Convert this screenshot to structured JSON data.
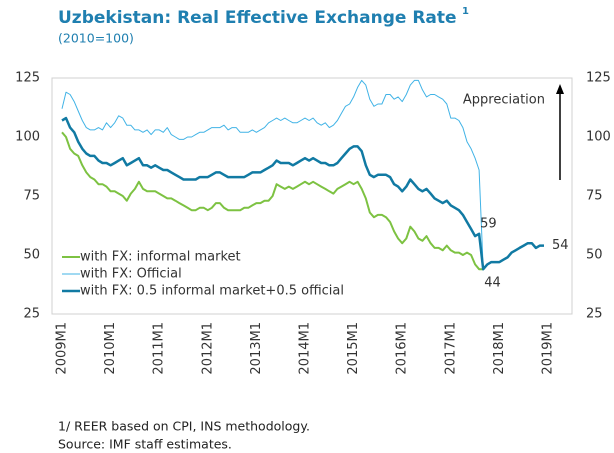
{
  "chart_data": {
    "type": "line",
    "title": "Uzbekistan: Real Effective Exchange Rate",
    "title_note_marker": "1",
    "subtitle": "(2010=100)",
    "categories": [
      "2009M1",
      null,
      null,
      null,
      null,
      null,
      null,
      null,
      null,
      null,
      null,
      null,
      "2010M1",
      null,
      null,
      null,
      null,
      null,
      null,
      null,
      null,
      null,
      null,
      null,
      "2011M1",
      null,
      null,
      null,
      null,
      null,
      null,
      null,
      null,
      null,
      null,
      null,
      "2012M1",
      null,
      null,
      null,
      null,
      null,
      null,
      null,
      null,
      null,
      null,
      null,
      "2013M1",
      null,
      null,
      null,
      null,
      null,
      null,
      null,
      null,
      null,
      null,
      null,
      "2014M1",
      null,
      null,
      null,
      null,
      null,
      null,
      null,
      null,
      null,
      null,
      null,
      "2015M1",
      null,
      null,
      null,
      null,
      null,
      null,
      null,
      null,
      null,
      null,
      null,
      "2016M1",
      null,
      null,
      null,
      null,
      null,
      null,
      null,
      null,
      null,
      null,
      null,
      "2017M1",
      null,
      null,
      null,
      null,
      null,
      null,
      null,
      null,
      null,
      null,
      null,
      "2018M1",
      null,
      null,
      null,
      null,
      null,
      null,
      null,
      null,
      null,
      null,
      null,
      "2019M1"
    ],
    "series": [
      {
        "name": "with FX: informal market",
        "color": "#7dc242",
        "width": 2,
        "values": [
          102,
          100,
          95,
          93,
          92,
          88,
          85,
          83,
          82,
          80,
          80,
          79,
          77,
          77,
          76,
          75,
          73,
          76,
          78,
          81,
          78,
          77,
          77,
          77,
          76,
          75,
          74,
          74,
          73,
          72,
          71,
          70,
          69,
          69,
          70,
          70,
          69,
          70,
          72,
          72,
          70,
          69,
          69,
          69,
          69,
          70,
          70,
          71,
          72,
          72,
          73,
          73,
          75,
          80,
          79,
          78,
          79,
          78,
          79,
          80,
          81,
          80,
          81,
          80,
          79,
          78,
          77,
          76,
          78,
          79,
          80,
          81,
          80,
          81,
          78,
          74,
          68,
          66,
          67,
          67,
          66,
          64,
          60,
          57,
          55,
          57,
          62,
          60,
          57,
          56,
          58,
          55,
          53,
          53,
          52,
          54,
          52,
          51,
          51,
          50,
          51,
          50,
          46,
          44,
          44,
          null,
          null,
          null,
          null,
          null,
          null,
          null,
          null,
          null,
          null,
          null,
          null,
          null,
          null,
          null,
          null
        ],
        "value_labels": [
          null,
          null,
          null,
          null,
          null,
          null,
          null,
          null,
          null,
          null,
          null,
          null,
          null,
          null,
          null,
          null,
          null,
          null,
          null,
          null,
          null,
          null,
          null,
          null,
          null,
          null,
          null,
          null,
          null,
          null,
          null,
          null,
          null,
          null,
          null,
          null,
          null,
          null,
          null,
          null,
          null,
          null,
          null,
          null,
          null,
          null,
          null,
          null,
          null,
          null,
          null,
          null,
          null,
          null,
          null,
          null,
          null,
          null,
          null,
          null,
          null,
          null,
          null,
          null,
          null,
          null,
          null,
          null,
          null,
          null,
          null,
          null,
          null,
          null,
          null,
          null,
          null,
          null,
          null,
          null,
          null,
          null,
          null,
          null,
          null,
          null,
          null,
          null,
          null,
          null,
          null,
          null,
          null,
          null,
          null,
          null,
          null,
          null,
          null,
          null,
          null,
          null,
          null,
          null,
          "44",
          null,
          null,
          null,
          null,
          null,
          null,
          null,
          null,
          null,
          null,
          null,
          null,
          null,
          null,
          null,
          null
        ]
      },
      {
        "name": "with FX: Official",
        "color": "#41b3e6",
        "width": 1,
        "values": [
          112,
          119,
          118,
          115,
          111,
          107,
          104,
          103,
          103,
          104,
          103,
          106,
          104,
          106,
          109,
          108,
          105,
          105,
          103,
          103,
          102,
          103,
          101,
          103,
          103,
          102,
          104,
          101,
          100,
          99,
          99,
          100,
          100,
          101,
          102,
          102,
          103,
          104,
          104,
          104,
          105,
          103,
          104,
          104,
          102,
          102,
          102,
          103,
          102,
          103,
          104,
          106,
          107,
          108,
          107,
          108,
          107,
          106,
          106,
          107,
          108,
          107,
          108,
          106,
          105,
          106,
          104,
          105,
          107,
          110,
          113,
          114,
          117,
          121,
          124,
          122,
          116,
          113,
          114,
          114,
          118,
          118,
          116,
          117,
          115,
          118,
          122,
          124,
          124,
          120,
          117,
          118,
          118,
          117,
          116,
          114,
          108,
          108,
          107,
          104,
          98,
          95,
          91,
          86,
          44,
          null,
          null,
          null,
          null,
          null,
          null,
          null,
          null,
          null,
          null,
          null,
          null,
          null,
          null,
          null,
          null
        ]
      },
      {
        "name": "with FX: 0.5 informal market+0.5 official",
        "color": "#117aa3",
        "width": 2.5,
        "values": [
          107,
          108,
          104,
          102,
          98,
          95,
          93,
          92,
          92,
          90,
          89,
          89,
          88,
          89,
          90,
          91,
          88,
          89,
          90,
          91,
          88,
          88,
          87,
          88,
          87,
          86,
          86,
          85,
          84,
          83,
          82,
          82,
          82,
          82,
          83,
          83,
          83,
          84,
          85,
          85,
          84,
          83,
          83,
          83,
          83,
          83,
          84,
          85,
          85,
          85,
          86,
          87,
          88,
          90,
          89,
          89,
          89,
          88,
          89,
          90,
          91,
          90,
          91,
          90,
          89,
          89,
          88,
          88,
          89,
          91,
          93,
          95,
          96,
          96,
          94,
          88,
          84,
          83,
          84,
          84,
          84,
          83,
          80,
          79,
          77,
          79,
          82,
          80,
          78,
          77,
          78,
          76,
          74,
          73,
          72,
          73,
          71,
          70,
          69,
          67,
          64,
          61,
          58,
          59,
          44,
          46,
          47,
          47,
          47,
          48,
          49,
          51,
          52,
          53,
          54,
          55,
          55,
          53,
          54,
          54,
          null
        ],
        "value_labels": [
          null,
          null,
          null,
          null,
          null,
          null,
          null,
          null,
          null,
          null,
          null,
          null,
          null,
          null,
          null,
          null,
          null,
          null,
          null,
          null,
          null,
          null,
          null,
          null,
          null,
          null,
          null,
          null,
          null,
          null,
          null,
          null,
          null,
          null,
          null,
          null,
          null,
          null,
          null,
          null,
          null,
          null,
          null,
          null,
          null,
          null,
          null,
          null,
          null,
          null,
          null,
          null,
          null,
          null,
          null,
          null,
          null,
          null,
          null,
          null,
          null,
          null,
          null,
          null,
          null,
          null,
          null,
          null,
          null,
          null,
          null,
          null,
          null,
          null,
          null,
          null,
          null,
          null,
          null,
          null,
          null,
          null,
          null,
          null,
          null,
          null,
          null,
          null,
          null,
          null,
          null,
          null,
          null,
          null,
          null,
          null,
          null,
          null,
          null,
          null,
          null,
          null,
          null,
          "59",
          null,
          null,
          null,
          null,
          null,
          null,
          null,
          null,
          null,
          null,
          null,
          null,
          null,
          null,
          null,
          "54",
          null
        ]
      }
    ],
    "ylim": [
      25,
      125
    ],
    "yticks": [
      25,
      50,
      75,
      100,
      125
    ],
    "y2lim": [
      25,
      125
    ],
    "y2ticks": [
      25,
      50,
      75,
      100,
      125
    ],
    "grid": false,
    "legend": "lower left",
    "annotation": "Appreciation",
    "footnotes": [
      "1/ REER based on CPI, INS methodology.",
      "Source: IMF staff estimates."
    ]
  }
}
